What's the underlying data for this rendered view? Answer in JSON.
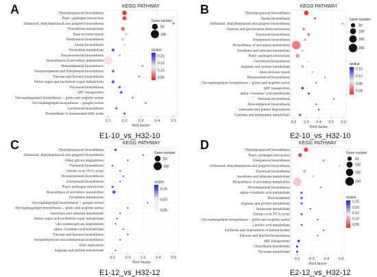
{
  "chart_data": [
    {
      "type": "scatter",
      "panel_letter": "A",
      "title": "KEGG PATHWAY",
      "comparison": "E1-10_vs_H32-10",
      "xlabel": "Rich factor",
      "xlim": [
        0.08,
        0.52
      ],
      "xticks": [
        0.1,
        0.2,
        0.3,
        0.4,
        0.5
      ],
      "xtick_labels": [
        "0.1",
        "0.2",
        "0.3",
        "0.4",
        "0.5"
      ],
      "size_legend": {
        "title": "Gene number",
        "values": [
          50,
          100
        ],
        "labels": [
          "50",
          "100"
        ],
        "min": 0,
        "max": 120
      },
      "color_legend": {
        "title": "qvalue",
        "range": [
          0.03,
          0.22
        ],
        "ticks": [
          0.2,
          0.15,
          0.1,
          0.05
        ],
        "tick_labels": [
          "0.20",
          "0.15",
          "0.10",
          "0.05"
        ],
        "low_color": "#e8232a",
        "high_color": "#1a1ad6"
      },
      "categories": [
        "Phenylpropanoid biosynthesis",
        "Plant−pathogen interaction",
        "Stilbenoid, diarylheptanoid and gingerol biosynthesis",
        "Glutathione metabolism",
        "Base excision repair",
        "Diterpenoid biosynthesis",
        "Zeatin biosynthesis",
        "Pyrimidine metabolism",
        "Brassinosteroid biosynthesis",
        "Biosynthesis of secondary metabolites",
        "Monoterpenoid biosynthesis",
        "Sesquiterpenoid and triterpenoid biosynthesis",
        "Flavone and flavonol biosynthesis",
        "Amino sugar and nucleotide sugar metabolism",
        "Flavonoid biosynthesis",
        "ABC transporters",
        "Glycosphingolipid biosynthesis − globo and isoglobo series",
        "Glycosphingolipid biosynthesis − ganglio series",
        "Carotenoid biosynthesis",
        "Biosynthesis of unsaturated fatty acids"
      ],
      "x": [
        0.2,
        0.2,
        0.5,
        0.19,
        0.21,
        0.19,
        0.2,
        0.13,
        0.17,
        0.1,
        0.31,
        0.13,
        0.29,
        0.13,
        0.17,
        0.18,
        0.25,
        0.33,
        0.15,
        0.2
      ],
      "gene_number": [
        30,
        25,
        6,
        22,
        6,
        10,
        6,
        12,
        8,
        110,
        4,
        10,
        4,
        12,
        8,
        10,
        4,
        3,
        6,
        5
      ],
      "qvalue": [
        0.03,
        0.04,
        0.05,
        0.06,
        0.09,
        0.1,
        0.11,
        0.2,
        0.15,
        0.12,
        0.19,
        0.19,
        0.19,
        0.2,
        0.2,
        0.2,
        0.2,
        0.2,
        0.2,
        0.21
      ]
    },
    {
      "type": "scatter",
      "panel_letter": "B",
      "title": "KEGG PATHWAY",
      "comparison": "E2-10_vs_H32-10",
      "xlabel": "Rich factor",
      "xlim": [
        0.18,
        0.62
      ],
      "xticks": [
        0.2,
        0.3,
        0.4,
        0.5,
        0.6
      ],
      "xtick_labels": [
        "0.2",
        "0.3",
        "0.4",
        "0.5",
        "0.6"
      ],
      "size_legend": {
        "title": "Gene number",
        "values": [
          50,
          100,
          150,
          200
        ],
        "labels": [
          "50",
          "100",
          "150",
          "200"
        ],
        "min": 0,
        "max": 220
      },
      "color_legend": {
        "title": "qvalue",
        "range": [
          0.02,
          0.17
        ],
        "ticks": [
          0.16,
          0.12,
          0.08,
          0.04
        ],
        "tick_labels": [
          "0.16",
          "0.12",
          "0.08",
          "0.04"
        ],
        "low_color": "#e8232a",
        "high_color": "#1a1ad6"
      },
      "categories": [
        "Phenylpropanoid biosynthesis",
        "Zeatin biosynthesis",
        "Stilbenoid, diarylheptanoid and gingerol biosynthesis",
        "Pentose and glucuronate interconversions",
        "Flavonoid biosynthesis",
        "Diterpenoid biosynthesis",
        "Biosynthesis of secondary metabolites",
        "Ascorbate and aldarate metabolism",
        "Plant−pathogen interaction",
        "Carotenoid biosynthesis",
        "Arginine and proline metabolism",
        "Base excision repair",
        "Brassinosteroid biosynthesis",
        "Glycosphingolipid biosynthesis − globo and isoglobo series",
        "ABC transporters",
        "alpha−Linolenic acid metabolism",
        "Betalain biosynthesis",
        "Monoterpenoid biosynthesis",
        "Limonene and pinene degradation",
        "Cysteine and methionine metabolism"
      ],
      "x": [
        0.3,
        0.37,
        0.59,
        0.28,
        0.32,
        0.29,
        0.22,
        0.27,
        0.23,
        0.32,
        0.27,
        0.35,
        0.45,
        0.38,
        0.27,
        0.32,
        0.52,
        0.38,
        0.4,
        0.25
      ],
      "gene_number": [
        55,
        12,
        6,
        18,
        20,
        14,
        200,
        12,
        40,
        16,
        18,
        5,
        5,
        6,
        18,
        12,
        3,
        5,
        5,
        12
      ],
      "qvalue": [
        0.02,
        0.03,
        0.04,
        0.05,
        0.05,
        0.06,
        0.05,
        0.07,
        0.06,
        0.1,
        0.12,
        0.13,
        0.14,
        0.15,
        0.16,
        0.16,
        0.16,
        0.16,
        0.16,
        0.16
      ]
    },
    {
      "type": "scatter",
      "panel_letter": "C",
      "title": "KEGG PATHWAY",
      "comparison": "E1-12_vs_H32-12",
      "xlabel": "Rich factor",
      "xlim": [
        0.05,
        0.53
      ],
      "xticks": [
        0.1,
        0.2,
        0.3,
        0.4,
        0.5
      ],
      "xtick_labels": [
        "0.1",
        "0.2",
        "0.3",
        "0.4",
        "0.5"
      ],
      "size_legend": {
        "title": "Gene number",
        "values": [
          50,
          100
        ],
        "labels": [
          "50",
          "100"
        ],
        "min": 0,
        "max": 120
      },
      "color_legend": {
        "title": "qvalue",
        "range": [
          0.2,
          0.85
        ],
        "ticks": [
          0.75,
          0.5,
          0.25
        ],
        "tick_labels": [
          "0.75",
          "0.50",
          "0.25"
        ],
        "low_color": "#f2f2fb",
        "high_color": "#1a1ad6"
      },
      "categories": [
        "Phenylpropanoid biosynthesis",
        "Stilbenoid, diarylheptanoid and gingerol biosynthesis",
        "Other glycan degradation",
        "Flavonoid biosynthesis",
        "Citrate cycle (TCA cycle)",
        "Monoterpenoid biosynthesis",
        "Diterpenoid biosynthesis",
        "Plant−pathogen interaction",
        "Biosynthesis of secondary metabolites",
        "Pyrimidine metabolism",
        "Glycosphingolipid biosynthesis − ganglio series",
        "Glycosphingolipid biosynthesis − globo and isoglobo series",
        "Ascorbate and aldarate metabolism",
        "Amino sugar and nucleotide sugar metabolism",
        "Glycosaminoglycan degradation",
        "alpha−Linolenic acid metabolism",
        "Flavone and flavonol biosynthesis",
        "Sesquiterpenoid and triterpenoid biosynthesis",
        "DNA replication",
        "Arginine and proline metabolism"
      ],
      "x": [
        0.12,
        0.3,
        0.2,
        0.1,
        0.15,
        0.17,
        0.15,
        0.1,
        0.11,
        0.12,
        0.33,
        0.2,
        0.15,
        0.13,
        0.12,
        0.17,
        0.2,
        0.15,
        0.1,
        0.12
      ],
      "gene_number": [
        8,
        3,
        3,
        4,
        4,
        3,
        4,
        6,
        14,
        6,
        2,
        2,
        3,
        4,
        2,
        3,
        2,
        3,
        3,
        3
      ],
      "qvalue": [
        0.8,
        0.8,
        0.8,
        0.8,
        0.8,
        0.8,
        0.8,
        0.8,
        0.8,
        0.2,
        0.8,
        0.8,
        0.8,
        0.8,
        0.8,
        0.8,
        0.8,
        0.8,
        0.2,
        0.8
      ]
    },
    {
      "type": "scatter",
      "panel_letter": "D",
      "title": "KEGG PATHWAY",
      "comparison": "E2-12_vs_H32-12",
      "xlabel": "Rich factor",
      "xlim": [
        0.16,
        0.52
      ],
      "xticks": [
        0.2,
        0.3,
        0.4,
        0.5
      ],
      "xtick_labels": [
        "0.2",
        "0.3",
        "0.4",
        "0.5"
      ],
      "size_legend": {
        "title": "Gene number",
        "values": [
          50,
          100,
          150,
          200
        ],
        "labels": [
          "50",
          "100",
          "150",
          "200"
        ],
        "min": 0,
        "max": 220
      },
      "color_legend": {
        "title": "qvalue",
        "range": [
          0.02,
          0.26
        ],
        "ticks": [
          0.25,
          0.2,
          0.15,
          0.1,
          0.05
        ],
        "tick_labels": [
          "0.25",
          "0.20",
          "0.15",
          "0.10",
          "0.05"
        ],
        "low_color": "#e8232a",
        "high_color": "#1a1ad6"
      },
      "categories": [
        "Phenylpropanoid biosynthesis",
        "Plant−pathogen interaction",
        "Diterpenoid biosynthesis",
        "Stilbenoid, diarylheptanoid and gingerol biosynthesis",
        "Flavonoid biosynthesis",
        "Ascorbate and aldarate metabolism",
        "Biosynthesis of secondary metabolites",
        "Monoterpenoid biosynthesis",
        "alpha−Linolenic acid metabolism",
        "Photosynthesis",
        "Arginine and proline metabolism",
        "Butanoate metabolism",
        "Citrate cycle (TCA cycle)",
        "Glycosphingolipid biosynthesis − globo and isoglobo series",
        "Linoleic acid metabolism",
        "Synthesis and degradation of ketone bodies",
        "Flavone and flavonol biosynthesis",
        "ABC transporters",
        "Glutathione metabolism",
        "Pyruvate metabolism"
      ],
      "x": [
        0.26,
        0.22,
        0.38,
        0.49,
        0.25,
        0.31,
        0.2,
        0.36,
        0.23,
        0.23,
        0.23,
        0.29,
        0.23,
        0.34,
        0.23,
        0.38,
        0.34,
        0.21,
        0.2,
        0.2
      ],
      "gene_number": [
        50,
        40,
        12,
        5,
        20,
        12,
        200,
        6,
        14,
        14,
        14,
        6,
        12,
        6,
        10,
        4,
        5,
        18,
        14,
        12
      ],
      "qvalue": [
        0.03,
        0.04,
        0.07,
        0.09,
        0.09,
        0.1,
        0.12,
        0.22,
        0.23,
        0.23,
        0.23,
        0.24,
        0.24,
        0.24,
        0.24,
        0.24,
        0.24,
        0.24,
        0.24,
        0.24
      ]
    }
  ]
}
